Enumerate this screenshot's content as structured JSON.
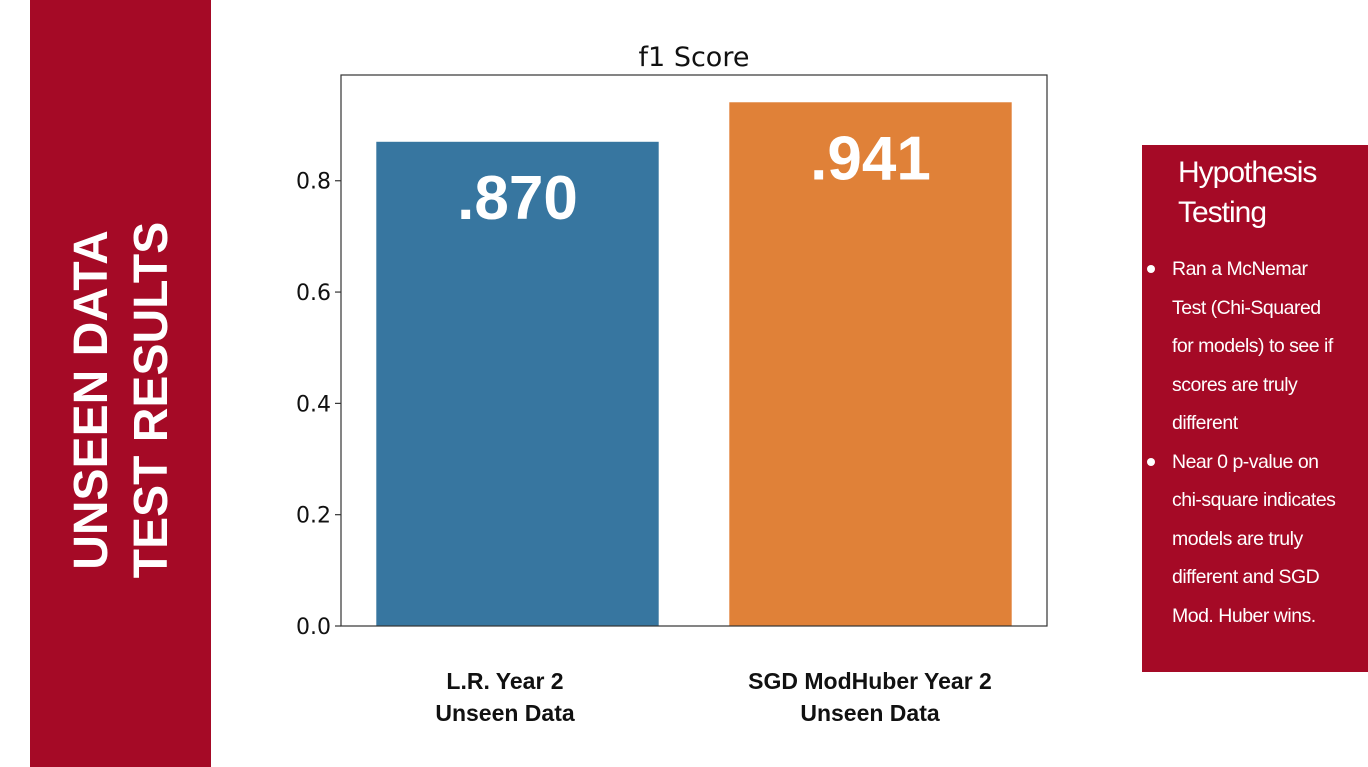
{
  "side_banner": {
    "lines": [
      "UNSEEN DATA",
      "TEST RESULTS"
    ],
    "color": "#a50a26"
  },
  "chart_data": {
    "type": "bar",
    "title": "f1 Score",
    "categories": [
      "L.R. Year 2 Unseen Data",
      "SGD ModHuber Year 2 Unseen Data"
    ],
    "category_lines": [
      [
        "L.R. Year 2",
        "Unseen Data"
      ],
      [
        "SGD ModHuber Year 2",
        "Unseen Data"
      ]
    ],
    "values": [
      0.87,
      0.941
    ],
    "value_labels": [
      ".870",
      ".941"
    ],
    "bar_colors": [
      "#3776a0",
      "#e08138"
    ],
    "yticks": [
      0.0,
      0.2,
      0.4,
      0.6,
      0.8
    ],
    "ytick_labels": [
      "0.0",
      "0.2",
      "0.4",
      "0.6",
      "0.8"
    ],
    "ylim": [
      0,
      0.99
    ],
    "xlabel": "",
    "ylabel": "",
    "grid": false
  },
  "hypothesis_panel": {
    "title_lines": [
      "Hypothesis",
      "Testing"
    ],
    "bullets": [
      [
        "Ran a McNemar",
        "Test (Chi-Squared",
        "for models) to see if",
        "scores are truly",
        "different"
      ],
      [
        "Near 0 p-value on",
        "chi-square indicates",
        "models are truly",
        "different and SGD",
        "Mod. Huber wins."
      ]
    ],
    "color": "#a50a26"
  }
}
